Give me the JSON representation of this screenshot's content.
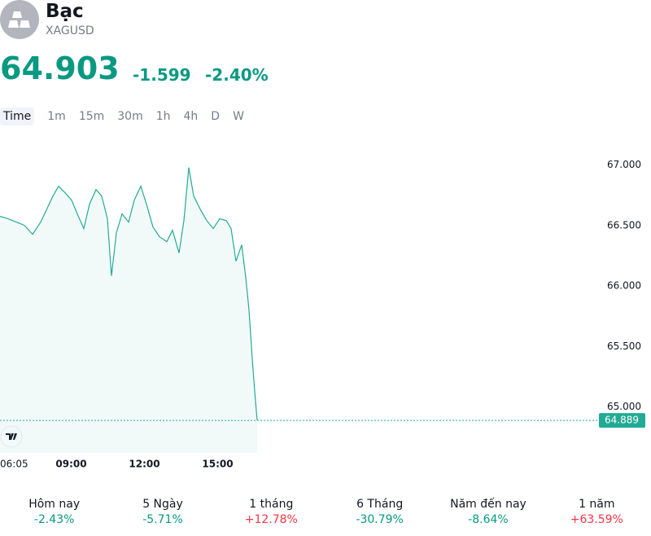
{
  "header": {
    "title": "Bạc",
    "symbol": "XAGUSD",
    "price": "64.903",
    "change": "-1.599",
    "change_pct": "-2.40%"
  },
  "tabs": [
    "Time",
    "1m",
    "15m",
    "30m",
    "1h",
    "4h",
    "D",
    "W"
  ],
  "chart_data": {
    "type": "line",
    "color": "#22ab94",
    "x": [
      "06:05",
      "06:25",
      "06:45",
      "07:05",
      "07:25",
      "07:45",
      "08:01",
      "08:15",
      "08:29",
      "08:45",
      "09:01",
      "09:15",
      "09:31",
      "09:45",
      "10:01",
      "10:15",
      "10:29",
      "10:39",
      "10:51",
      "11:05",
      "11:21",
      "11:35",
      "11:51",
      "12:05",
      "12:21",
      "12:37",
      "12:55",
      "13:09",
      "13:25",
      "13:37",
      "13:49",
      "14:01",
      "14:17",
      "14:33",
      "14:49",
      "15:05",
      "15:21",
      "15:33",
      "15:45",
      "15:59",
      "16:09",
      "16:17",
      "16:25",
      "16:31",
      "16:37"
    ],
    "values": [
      66.576,
      66.556,
      66.529,
      66.502,
      66.428,
      66.529,
      66.643,
      66.744,
      66.825,
      66.771,
      66.71,
      66.596,
      66.475,
      66.677,
      66.798,
      66.744,
      66.556,
      66.084,
      66.441,
      66.596,
      66.529,
      66.71,
      66.825,
      66.677,
      66.488,
      66.407,
      66.367,
      66.461,
      66.273,
      66.542,
      66.98,
      66.744,
      66.636,
      66.542,
      66.475,
      66.556,
      66.542,
      66.475,
      66.205,
      66.34,
      66.071,
      65.801,
      65.397,
      65.128,
      64.889
    ],
    "ylim": [
      64.62,
      67.22
    ],
    "yticks": [
      {
        "value": 65,
        "label": "65.000"
      },
      {
        "value": 65.5,
        "label": "65.500"
      },
      {
        "value": 66,
        "label": "66.000"
      },
      {
        "value": 66.5,
        "label": "66.500"
      },
      {
        "value": 67,
        "label": "67.000"
      }
    ],
    "xticks": [
      "06:05",
      "09:00",
      "12:00",
      "15:00"
    ],
    "last_price": {
      "value": 64.889,
      "label": "64.889"
    }
  },
  "performance": [
    {
      "label": "Hôm nay",
      "value": "-2.43%",
      "trend": "down"
    },
    {
      "label": "5 Ngày",
      "value": "-5.71%",
      "trend": "down"
    },
    {
      "label": "1 tháng",
      "value": "+12.78%",
      "trend": "up"
    },
    {
      "label": "6 Tháng",
      "value": "-30.79%",
      "trend": "down"
    },
    {
      "label": "Năm đến nay",
      "value": "-8.64%",
      "trend": "down"
    },
    {
      "label": "1 năm",
      "value": "+63.59%",
      "trend": "up"
    }
  ]
}
